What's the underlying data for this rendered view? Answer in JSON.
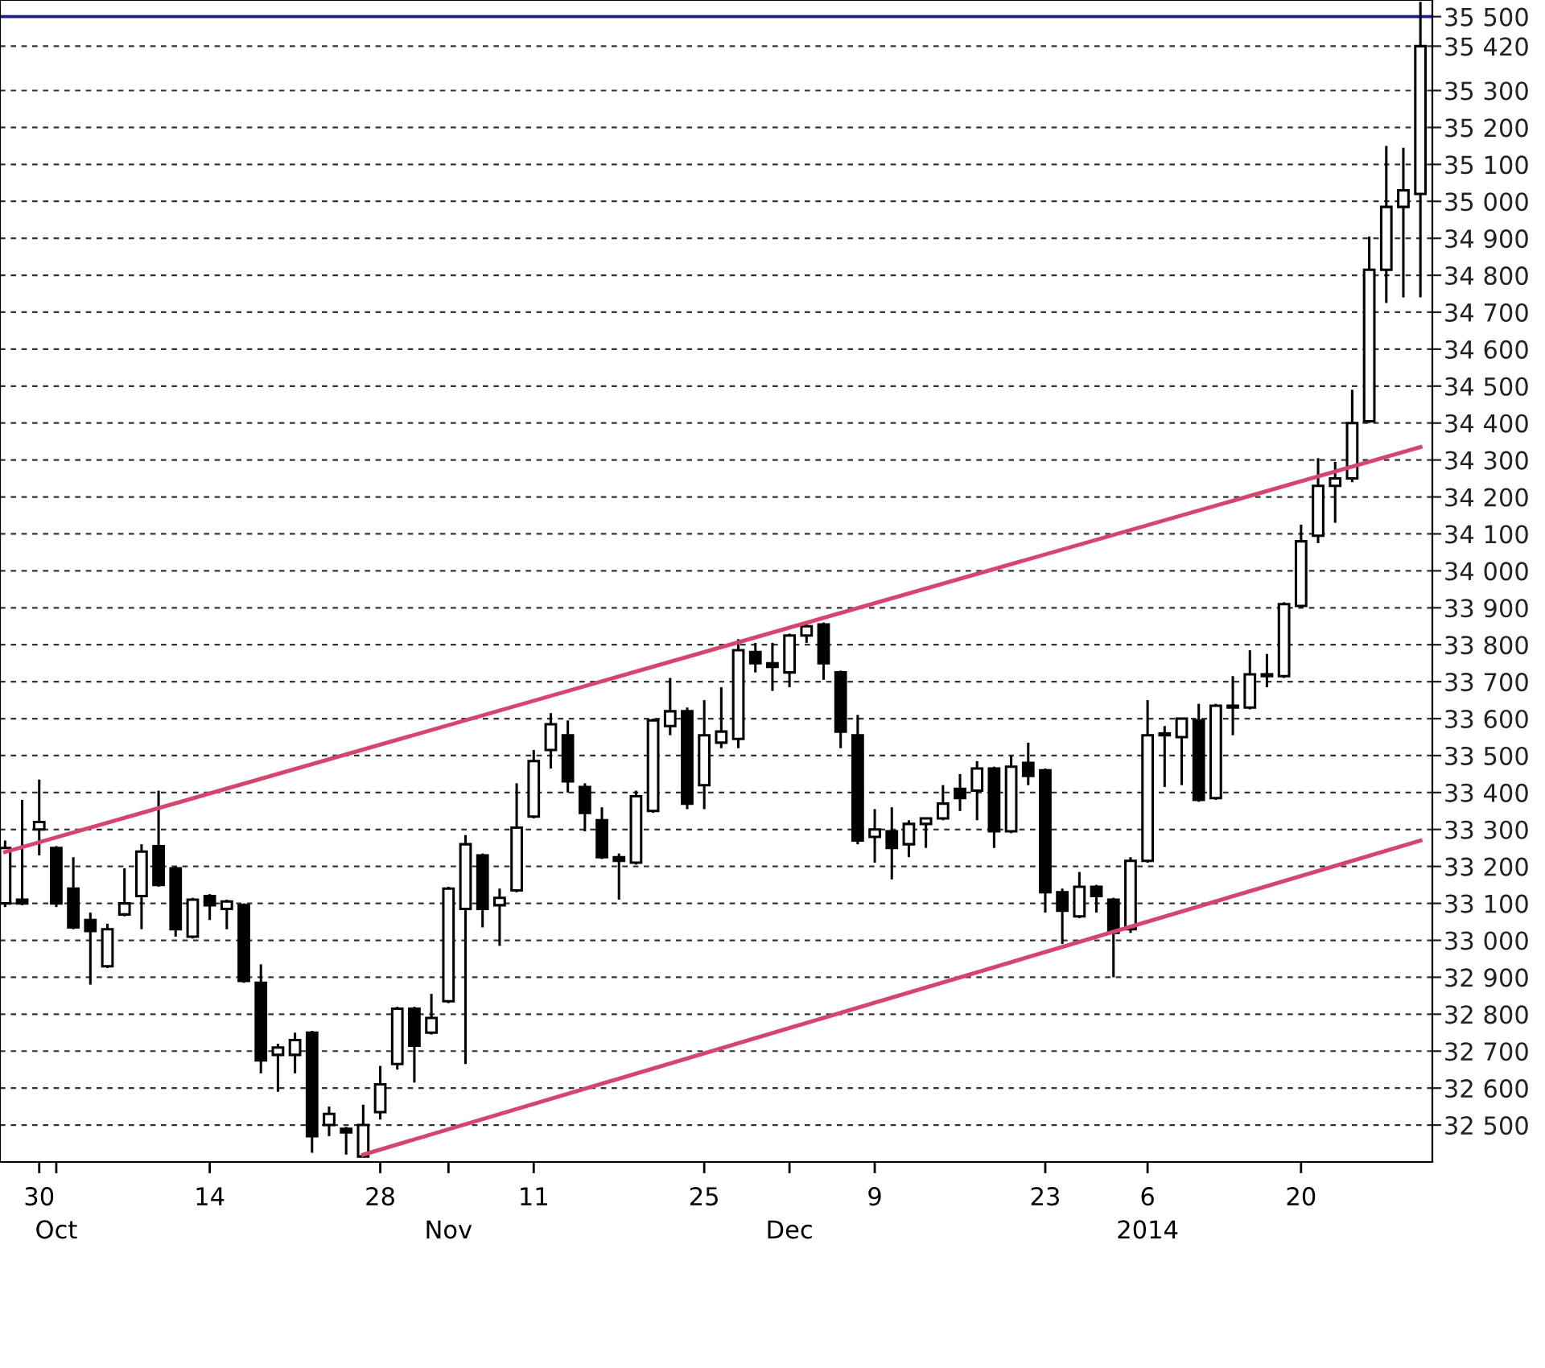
{
  "chart_data": {
    "type": "candlestick",
    "color": "#000000",
    "categories": [
      null,
      null,
      "30",
      "\nOct",
      null,
      null,
      null,
      null,
      null,
      null,
      null,
      null,
      "14",
      null,
      null,
      null,
      null,
      null,
      null,
      null,
      null,
      null,
      "28",
      null,
      null,
      null,
      "\nNov",
      null,
      null,
      null,
      null,
      "11",
      null,
      null,
      null,
      null,
      null,
      null,
      null,
      null,
      null,
      "25",
      null,
      null,
      null,
      null,
      "\nDec",
      null,
      null,
      null,
      null,
      "9",
      null,
      null,
      null,
      null,
      null,
      null,
      null,
      null,
      null,
      "23",
      null,
      null,
      null,
      null,
      null,
      "6\n2014",
      null,
      null,
      null,
      null,
      null,
      null,
      null,
      null,
      "20",
      null,
      null,
      null,
      null,
      null,
      null,
      null
    ],
    "ohlc": [
      [
        33100,
        33270,
        33090,
        33250
      ],
      [
        33110,
        33380,
        33095,
        33100
      ],
      [
        33300,
        33435,
        33230,
        33320
      ],
      [
        33250,
        33255,
        33090,
        33100
      ],
      [
        33140,
        33225,
        33030,
        33035
      ],
      [
        33055,
        33075,
        32880,
        33025
      ],
      [
        32930,
        33045,
        32925,
        33030
      ],
      [
        33070,
        33195,
        33065,
        33100
      ],
      [
        33120,
        33260,
        33030,
        33240
      ],
      [
        33255,
        33405,
        33145,
        33150
      ],
      [
        33195,
        33200,
        33010,
        33030
      ],
      [
        33010,
        33115,
        33005,
        33110
      ],
      [
        33120,
        33125,
        33055,
        33095
      ],
      [
        33085,
        33110,
        33030,
        33105
      ],
      [
        33095,
        33100,
        32885,
        32890
      ],
      [
        32885,
        32935,
        32640,
        32675
      ],
      [
        32690,
        32720,
        32590,
        32710
      ],
      [
        32690,
        32750,
        32640,
        32730
      ],
      [
        32750,
        32755,
        32425,
        32470
      ],
      [
        32500,
        32550,
        32470,
        32530
      ],
      [
        32490,
        32495,
        32420,
        32480
      ],
      [
        32415,
        32555,
        32415,
        32500
      ],
      [
        32535,
        32660,
        32515,
        32610
      ],
      [
        32665,
        32820,
        32650,
        32815
      ],
      [
        32815,
        32820,
        32615,
        32715
      ],
      [
        32750,
        32855,
        32745,
        32790
      ],
      [
        32835,
        33145,
        32830,
        33140
      ],
      [
        33085,
        33285,
        32665,
        33260
      ],
      [
        33230,
        33235,
        33035,
        33085
      ],
      [
        33095,
        33140,
        32985,
        33115
      ],
      [
        33135,
        33425,
        33130,
        33305
      ],
      [
        33335,
        33515,
        33330,
        33485
      ],
      [
        33515,
        33615,
        33465,
        33585
      ],
      [
        33555,
        33595,
        33400,
        33430
      ],
      [
        33415,
        33425,
        33295,
        33345
      ],
      [
        33325,
        33360,
        33220,
        33225
      ],
      [
        33225,
        33235,
        33110,
        33215
      ],
      [
        33210,
        33405,
        33205,
        33390
      ],
      [
        33350,
        33600,
        33345,
        33595
      ],
      [
        33580,
        33710,
        33555,
        33620
      ],
      [
        33620,
        33630,
        33355,
        33370
      ],
      [
        33420,
        33650,
        33355,
        33555
      ],
      [
        33535,
        33685,
        33520,
        33565
      ],
      [
        33545,
        33815,
        33520,
        33785
      ],
      [
        33780,
        33805,
        33725,
        33750
      ],
      [
        33750,
        33805,
        33675,
        33740
      ],
      [
        33725,
        33830,
        33685,
        33825
      ],
      [
        33825,
        33860,
        33805,
        33850
      ],
      [
        33855,
        33860,
        33705,
        33750
      ],
      [
        33725,
        33730,
        33520,
        33565
      ],
      [
        33555,
        33610,
        33260,
        33270
      ],
      [
        33280,
        33355,
        33210,
        33300
      ],
      [
        33295,
        33360,
        33165,
        33250
      ],
      [
        33260,
        33325,
        33225,
        33315
      ],
      [
        33315,
        33330,
        33250,
        33330
      ],
      [
        33330,
        33420,
        33325,
        33370
      ],
      [
        33410,
        33450,
        33350,
        33385
      ],
      [
        33405,
        33485,
        33325,
        33465
      ],
      [
        33465,
        33470,
        33250,
        33295
      ],
      [
        33295,
        33500,
        33290,
        33470
      ],
      [
        33480,
        33535,
        33420,
        33445
      ],
      [
        33460,
        33465,
        33075,
        33130
      ],
      [
        33130,
        33140,
        32990,
        33080
      ],
      [
        33065,
        33185,
        33060,
        33145
      ],
      [
        33145,
        33150,
        33075,
        33120
      ],
      [
        33110,
        33115,
        32900,
        33020
      ],
      [
        33030,
        33225,
        33020,
        33215
      ],
      [
        33215,
        33650,
        33210,
        33555
      ],
      [
        33555,
        33580,
        33415,
        33560
      ],
      [
        33550,
        33600,
        33420,
        33600
      ],
      [
        33595,
        33640,
        33375,
        33380
      ],
      [
        33385,
        33640,
        33380,
        33635
      ],
      [
        33630,
        33715,
        33555,
        33635
      ],
      [
        33630,
        33785,
        33625,
        33720
      ],
      [
        33715,
        33775,
        33685,
        33720
      ],
      [
        33715,
        33915,
        33710,
        33910
      ],
      [
        33905,
        34125,
        33900,
        34080
      ],
      [
        34095,
        34305,
        34075,
        34230
      ],
      [
        34230,
        34295,
        34130,
        34250
      ],
      [
        34250,
        34490,
        34240,
        34400
      ],
      [
        34405,
        34905,
        34400,
        34815
      ],
      [
        34815,
        35150,
        34725,
        34985
      ],
      [
        34985,
        35145,
        34740,
        35030
      ],
      [
        35020,
        35540,
        34740,
        35420
      ]
    ],
    "series": [
      {
        "type": "line",
        "color": "#d6456e",
        "values": [
          33239,
          null,
          null,
          null,
          null,
          null,
          null,
          null,
          null,
          null,
          null,
          null,
          null,
          null,
          null,
          null,
          null,
          null,
          null,
          null,
          null,
          null,
          null,
          null,
          null,
          null,
          null,
          null,
          null,
          null,
          null,
          null,
          null,
          null,
          null,
          null,
          null,
          null,
          null,
          null,
          null,
          null,
          null,
          null,
          null,
          null,
          null,
          null,
          null,
          null,
          null,
          null,
          null,
          null,
          null,
          null,
          null,
          null,
          null,
          null,
          null,
          null,
          null,
          null,
          null,
          null,
          null,
          null,
          null,
          null,
          null,
          null,
          null,
          null,
          null,
          null,
          null,
          null,
          null,
          null,
          null,
          null,
          null,
          34335
        ]
      },
      {
        "type": "line",
        "color": "#d6456e",
        "values": [
          null,
          null,
          null,
          null,
          null,
          null,
          null,
          null,
          null,
          null,
          null,
          null,
          null,
          null,
          null,
          null,
          null,
          null,
          null,
          null,
          null,
          32420,
          null,
          null,
          null,
          null,
          null,
          null,
          null,
          null,
          null,
          null,
          null,
          null,
          null,
          null,
          null,
          null,
          null,
          null,
          null,
          null,
          null,
          null,
          null,
          null,
          null,
          null,
          null,
          null,
          null,
          null,
          null,
          null,
          null,
          null,
          null,
          null,
          null,
          null,
          null,
          null,
          null,
          null,
          null,
          null,
          null,
          null,
          null,
          null,
          null,
          null,
          null,
          null,
          null,
          null,
          null,
          null,
          null,
          null,
          null,
          null,
          null,
          33270
        ]
      }
    ],
    "ref_lines": [
      {
        "axis": "y",
        "value": 35500,
        "color": "#1c1c8c"
      }
    ],
    "ylim": [
      32400,
      35545
    ],
    "yticks": [
      {
        "value": 32500,
        "label": "32 500"
      },
      {
        "value": 32600,
        "label": "32 600"
      },
      {
        "value": 32700,
        "label": "32 700"
      },
      {
        "value": 32800,
        "label": "32 800"
      },
      {
        "value": 32900,
        "label": "32 900"
      },
      {
        "value": 33000,
        "label": "33 000"
      },
      {
        "value": 33100,
        "label": "33 100"
      },
      {
        "value": 33200,
        "label": "33 200"
      },
      {
        "value": 33300,
        "label": "33 300"
      },
      {
        "value": 33400,
        "label": "33 400"
      },
      {
        "value": 33500,
        "label": "33 500"
      },
      {
        "value": 33600,
        "label": "33 600"
      },
      {
        "value": 33700,
        "label": "33 700"
      },
      {
        "value": 33800,
        "label": "33 800"
      },
      {
        "value": 33900,
        "label": "33 900"
      },
      {
        "value": 34000,
        "label": "34 000"
      },
      {
        "value": 34100,
        "label": "34 100"
      },
      {
        "value": 34200,
        "label": "34 200"
      },
      {
        "value": 34300,
        "label": "34 300"
      },
      {
        "value": 34400,
        "label": "34 400"
      },
      {
        "value": 34500,
        "label": "34 500"
      },
      {
        "value": 34600,
        "label": "34 600"
      },
      {
        "value": 34700,
        "label": "34 700"
      },
      {
        "value": 34800,
        "label": "34 800"
      },
      {
        "value": 34900,
        "label": "34 900"
      },
      {
        "value": 35000,
        "label": "35 000"
      },
      {
        "value": 35100,
        "label": "35 100"
      },
      {
        "value": 35200,
        "label": "35 200"
      },
      {
        "value": 35300,
        "label": "35 300"
      },
      {
        "value": 35420,
        "label": "35 420"
      },
      {
        "value": 35500,
        "label": "35 500"
      }
    ],
    "grid": "y"
  }
}
